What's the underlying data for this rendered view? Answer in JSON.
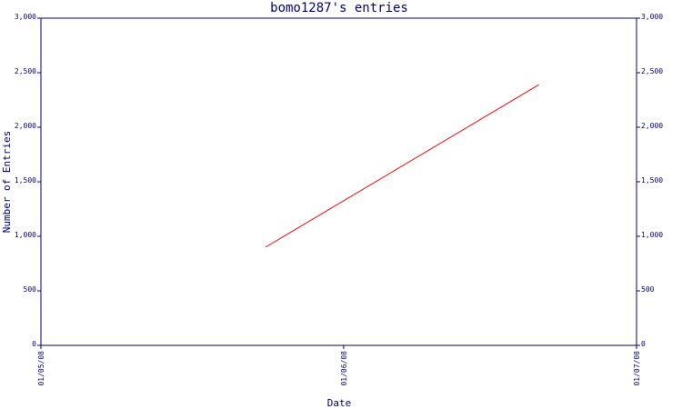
{
  "chart_data": {
    "type": "line",
    "title": "bomo1287's entries",
    "xlabel": "Date",
    "ylabel": "Number of Entries",
    "x_ticks": [
      "01/05/08",
      "01/06/08",
      "01/07/08"
    ],
    "y_ticks": [
      0,
      500,
      1000,
      1500,
      2000,
      2500,
      3000
    ],
    "y_tick_labels": [
      "0",
      "500",
      "1,000",
      "1,500",
      "2,000",
      "2,500",
      "3,000"
    ],
    "ylim": [
      0,
      3000
    ],
    "xlim": [
      "01/05/08",
      "01/07/08"
    ],
    "grid": false,
    "right_axis": true,
    "series": [
      {
        "color": "#ff0000",
        "points": [
          {
            "x": "2008-05-24",
            "y": 900
          },
          {
            "x": "2008-06-21",
            "y": 2390
          }
        ]
      }
    ]
  }
}
